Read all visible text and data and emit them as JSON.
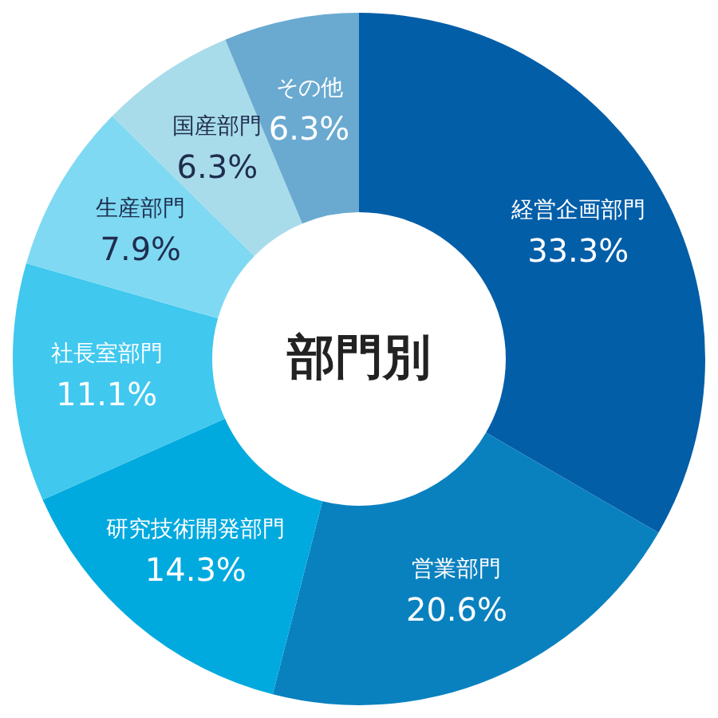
{
  "chart_data": {
    "type": "donut",
    "title": "部門別",
    "categories": [
      "経営企画部門",
      "営業部門",
      "研究技術開発部門",
      "社長室部門",
      "生産部門",
      "国産部門",
      "その他"
    ],
    "values": [
      33.3,
      20.6,
      14.3,
      11.1,
      7.9,
      6.3,
      6.3
    ],
    "value_labels": [
      "33.3%",
      "20.6%",
      "14.3%",
      "11.1%",
      "7.9%",
      "6.3%",
      "6.3%"
    ],
    "colors": [
      "#035ea8",
      "#0a81bf",
      "#00aadf",
      "#40c8ef",
      "#7fd9f2",
      "#a9dcea",
      "#6aaad1"
    ]
  }
}
